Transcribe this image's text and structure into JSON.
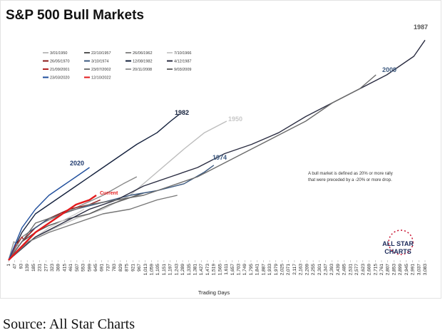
{
  "chart_data": {
    "type": "line",
    "title": "S&P 500 Bull Markets",
    "x_label": "Trading Days",
    "source": "Source: All Star Charts",
    "note": [
      "A bull market is defined as 20% or more rally",
      "that were preceded by a -20% or more drop."
    ],
    "logo": [
      "ALL STAR",
      "CHARTS"
    ],
    "annotations": [
      "2020",
      "1982",
      "1950",
      "1974",
      "2009",
      "1987",
      "Current"
    ],
    "xlim": [
      1,
      3120
    ],
    "ylim": [
      0,
      100
    ],
    "xticks": [
      1,
      47,
      93,
      139,
      185,
      231,
      277,
      323,
      369,
      415,
      461,
      507,
      553,
      599,
      645,
      691,
      737,
      783,
      829,
      875,
      921,
      967,
      {
        "value": 1013,
        "label": "1,013"
      },
      {
        "value": 1059,
        "label": "1,059"
      },
      {
        "value": 1105,
        "label": "1,105"
      },
      {
        "value": 1151,
        "label": "1,151"
      },
      {
        "value": 1197,
        "label": "1,197"
      },
      {
        "value": 1243,
        "label": "1,243"
      },
      {
        "value": 1289,
        "label": "1,289"
      },
      {
        "value": 1335,
        "label": "1,335"
      },
      {
        "value": 1381,
        "label": "1,381"
      },
      {
        "value": 1427,
        "label": "1,427"
      },
      {
        "value": 1473,
        "label": "1,473"
      },
      {
        "value": 1519,
        "label": "1,519"
      },
      {
        "value": 1565,
        "label": "1,565"
      },
      {
        "value": 1611,
        "label": "1,611"
      },
      {
        "value": 1657,
        "label": "1,657"
      },
      {
        "value": 1703,
        "label": "1,703"
      },
      {
        "value": 1749,
        "label": "1,749"
      },
      {
        "value": 1795,
        "label": "1,795"
      },
      {
        "value": 1841,
        "label": "1,841"
      },
      {
        "value": 1887,
        "label": "1,887"
      },
      {
        "value": 1933,
        "label": "1,933"
      },
      {
        "value": 1979,
        "label": "1,979"
      },
      {
        "value": 2025,
        "label": "2,025"
      },
      {
        "value": 2071,
        "label": "2,071"
      },
      {
        "value": 2117,
        "label": "2,117"
      },
      {
        "value": 2163,
        "label": "2,163"
      },
      {
        "value": 2209,
        "label": "2,209"
      },
      {
        "value": 2255,
        "label": "2,255"
      },
      {
        "value": 2301,
        "label": "2,301"
      },
      {
        "value": 2347,
        "label": "2,347"
      },
      {
        "value": 2393,
        "label": "2,393"
      },
      {
        "value": 2439,
        "label": "2,439"
      },
      {
        "value": 2485,
        "label": "2,485"
      },
      {
        "value": 2531,
        "label": "2,531"
      },
      {
        "value": 2577,
        "label": "2,577"
      },
      {
        "value": 2623,
        "label": "2,623"
      },
      {
        "value": 2669,
        "label": "2,669"
      },
      {
        "value": 2715,
        "label": "2,715"
      },
      {
        "value": 2761,
        "label": "2,761"
      },
      {
        "value": 2807,
        "label": "2,807"
      },
      {
        "value": 2853,
        "label": "2,853"
      },
      {
        "value": 2899,
        "label": "2,899"
      },
      {
        "value": 2945,
        "label": "2,945"
      },
      {
        "value": 2991,
        "label": "2,991"
      },
      {
        "value": 3037,
        "label": "3,037"
      },
      {
        "value": 3083,
        "label": "3,083"
      }
    ],
    "series": [
      {
        "name": "3/01/1950",
        "color": "#bdbdbd",
        "x": [
          1,
          100,
          200,
          350,
          500,
          700,
          900,
          1100,
          1300,
          1450,
          1615
        ],
        "values": [
          0,
          6,
          10,
          14,
          18,
          22,
          28,
          38,
          48,
          55,
          60
        ]
      },
      {
        "name": "22/10/1957",
        "color": "#555555",
        "x": [
          1,
          100,
          200,
          300,
          450,
          600,
          750,
          900,
          1000
        ],
        "values": [
          0,
          8,
          12,
          15,
          18,
          20,
          24,
          27,
          29
        ]
      },
      {
        "name": "26/06/1962",
        "color": "#888888",
        "x": [
          1,
          100,
          250,
          400,
          550,
          700,
          850,
          950
        ],
        "values": [
          0,
          10,
          16,
          20,
          24,
          28,
          33,
          36
        ]
      },
      {
        "name": "7/10/1966",
        "color": "#cccccc",
        "x": [
          1,
          100,
          200,
          300,
          400,
          500,
          560
        ],
        "values": [
          0,
          6,
          10,
          14,
          17,
          20,
          22
        ]
      },
      {
        "name": "26/05/1970",
        "color": "#8b1a1a",
        "x": [
          1,
          100,
          200,
          300,
          450,
          600,
          680
        ],
        "values": [
          0,
          8,
          14,
          18,
          22,
          24,
          26
        ]
      },
      {
        "name": "3/10/1974",
        "color": "#3d5a80",
        "x": [
          1,
          150,
          300,
          500,
          700,
          900,
          1100,
          1300,
          1450,
          1520
        ],
        "values": [
          0,
          12,
          18,
          22,
          25,
          28,
          30,
          33,
          38,
          41
        ]
      },
      {
        "name": "12/08/1982",
        "color": "#14213d",
        "x": [
          1,
          100,
          200,
          350,
          500,
          650,
          800,
          950,
          1100,
          1200,
          1265
        ],
        "values": [
          0,
          12,
          20,
          26,
          32,
          38,
          44,
          50,
          55,
          60,
          63
        ]
      },
      {
        "name": "4/12/1987",
        "color": "#2b2d42",
        "x": [
          1,
          200,
          400,
          600,
          800,
          1000,
          1200,
          1400,
          1600,
          1800,
          2000,
          2200,
          2400,
          2600,
          2800,
          3000,
          3083
        ],
        "values": [
          0,
          10,
          16,
          22,
          26,
          32,
          36,
          40,
          46,
          50,
          55,
          62,
          68,
          74,
          80,
          88,
          95
        ]
      },
      {
        "name": "21/09/2001",
        "color": "#b22222",
        "x": [
          1,
          50,
          100,
          110
        ],
        "values": [
          0,
          6,
          10,
          9
        ]
      },
      {
        "name": "23/07/2002",
        "color": "#777777",
        "x": [
          1,
          150,
          300,
          500,
          700,
          900,
          1100,
          1250
        ],
        "values": [
          0,
          8,
          12,
          16,
          20,
          22,
          26,
          28
        ]
      },
      {
        "name": "20/11/2008",
        "color": "#999999",
        "x": [
          1,
          40,
          80
        ],
        "values": [
          0,
          8,
          6
        ]
      },
      {
        "name": "9/03/2009",
        "color": "#6b6b6b",
        "x": [
          1,
          200,
          400,
          600,
          800,
          1000,
          1200,
          1400,
          1600,
          1800,
          2000,
          2200,
          2400,
          2600,
          2720
        ],
        "values": [
          0,
          16,
          20,
          24,
          26,
          28,
          32,
          36,
          42,
          48,
          54,
          60,
          68,
          74,
          80
        ]
      },
      {
        "name": "23/03/2020",
        "color": "#1f4e9c",
        "x": [
          1,
          100,
          200,
          300,
          400,
          500,
          600
        ],
        "values": [
          0,
          14,
          22,
          28,
          32,
          36,
          40
        ]
      },
      {
        "name": "12/10/2022",
        "color": "#e31a1c",
        "x": [
          1,
          100,
          200,
          300,
          400,
          500,
          600,
          650
        ],
        "values": [
          0,
          6,
          12,
          16,
          20,
          24,
          26,
          28
        ]
      }
    ]
  }
}
